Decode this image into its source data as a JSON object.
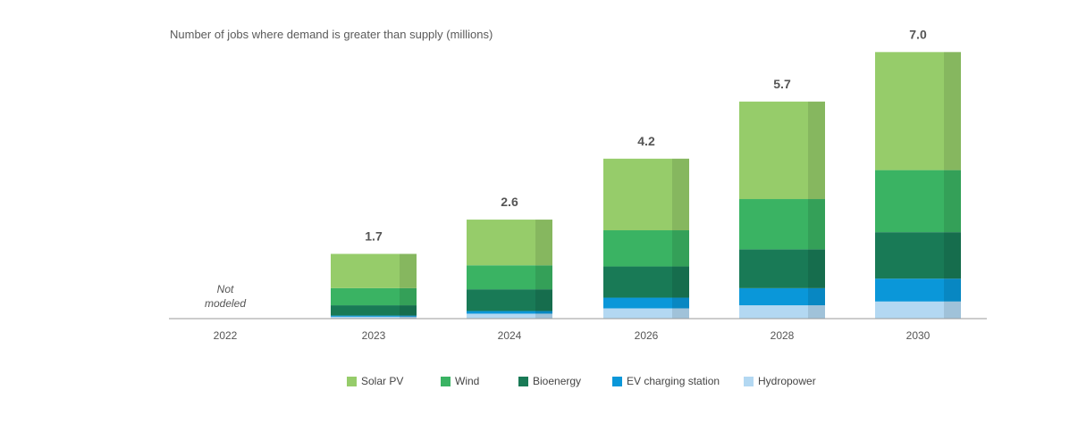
{
  "chart_data": {
    "type": "bar",
    "stacked": true,
    "title": "Number of jobs where demand is greater than supply (millions)",
    "categories": [
      "2022",
      "2023",
      "2024",
      "2026",
      "2028",
      "2030"
    ],
    "totals": [
      "",
      "1.7",
      "2.6",
      "4.2",
      "5.7",
      "7.0"
    ],
    "annotation": {
      "category": "2022",
      "lines": [
        "Not",
        "modeled"
      ]
    },
    "ylim": [
      0,
      7.5
    ],
    "grid": false,
    "legend_position": "bottom",
    "series": [
      {
        "name": "Hydropower",
        "color": "#b3d8f2",
        "values": [
          null,
          0.05,
          0.13,
          0.27,
          0.35,
          0.45
        ]
      },
      {
        "name": "EV charging station",
        "color": "#0a97d9",
        "values": [
          null,
          0.03,
          0.07,
          0.28,
          0.45,
          0.6
        ]
      },
      {
        "name": "Bioenergy",
        "color": "#197a56",
        "values": [
          null,
          0.27,
          0.57,
          0.82,
          1.02,
          1.22
        ]
      },
      {
        "name": "Wind",
        "color": "#3ab363",
        "values": [
          null,
          0.45,
          0.63,
          0.95,
          1.32,
          1.63
        ]
      },
      {
        "name": "Solar PV",
        "color": "#96cc6a",
        "values": [
          null,
          0.9,
          1.2,
          1.88,
          2.56,
          3.1
        ]
      }
    ]
  },
  "legend_order": [
    "Solar PV",
    "Wind",
    "Bioenergy",
    "EV charging station",
    "Hydropower"
  ]
}
